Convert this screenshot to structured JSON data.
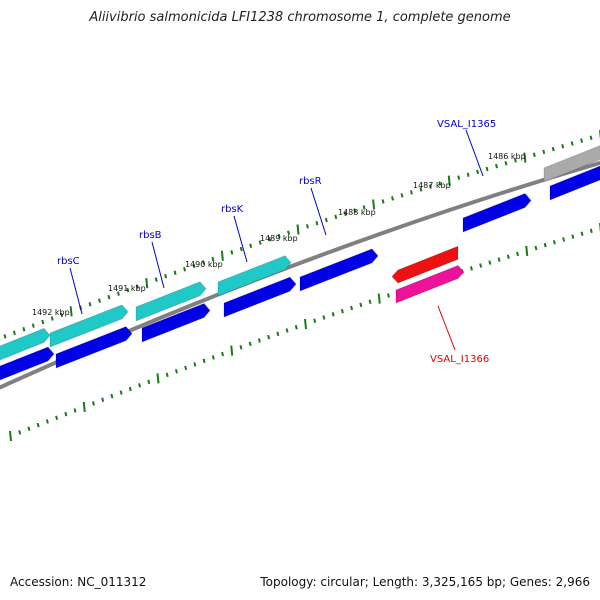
{
  "title": "Aliivibrio salmonicida LFI1238 chromosome 1, complete genome",
  "footer": {
    "accession": "Accession: NC_011312",
    "summary": "Topology: circular; Length: 3,325,165 bp; Genes: 2,966"
  },
  "ticks": [
    "1492 kbp",
    "1491 kbp",
    "1490 kbp",
    "1489 kbp",
    "1488 kbp",
    "1487 kbp",
    "1486 kbp"
  ],
  "gene_labels": [
    "rbsC",
    "rbsB",
    "rbsK",
    "rbsR",
    "VSAL_I1365",
    "VSAL_I1366"
  ],
  "colors": {
    "backbone": "#808080",
    "ticks": "#1a7a1a",
    "cds_blue": "#0000e6",
    "rna_cyan": "#20c8c8",
    "red": "#ee1111",
    "pink": "#ee1199",
    "grey": "#aaaaaa",
    "label_blue": "#0000cc",
    "label_red": "#dd0000"
  }
}
